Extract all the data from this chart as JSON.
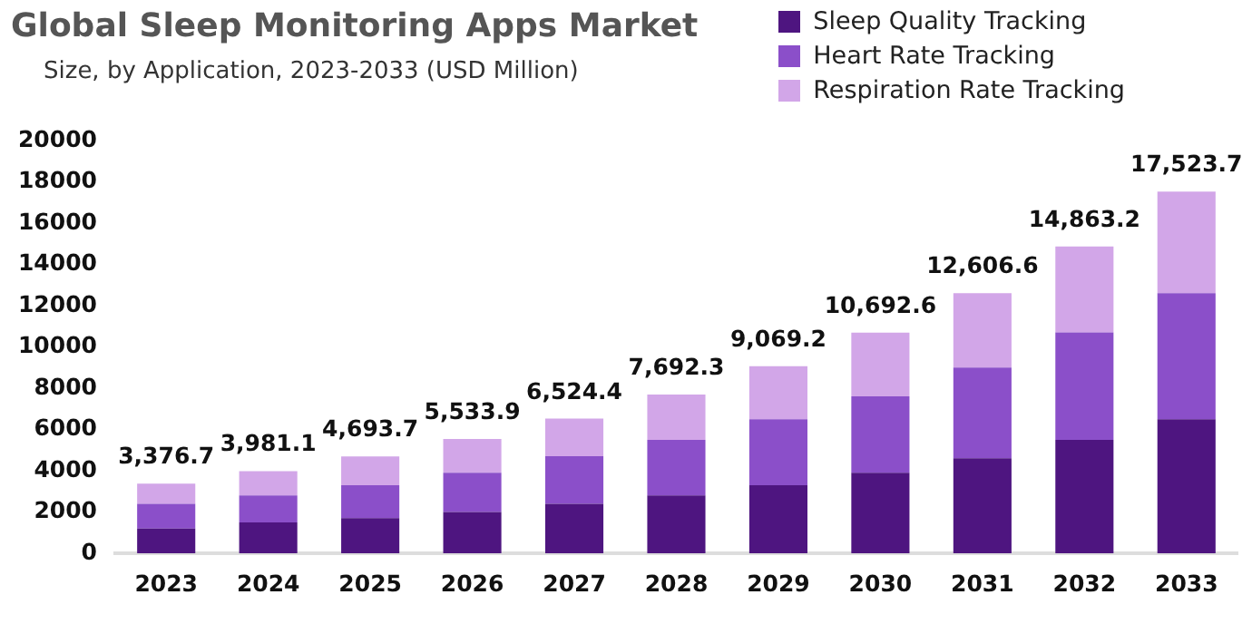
{
  "chart_data": {
    "type": "bar",
    "title": "Global Sleep Monitoring Apps Market",
    "subtitle": "Size, by Application, 2023-2033 (USD Million)",
    "categories": [
      "2023",
      "2024",
      "2025",
      "2026",
      "2027",
      "2028",
      "2029",
      "2030",
      "2031",
      "2032",
      "2033"
    ],
    "stacked": true,
    "series": [
      {
        "name": "Sleep Quality Tracking",
        "color": "#4e1580",
        "values": [
          1200,
          1500,
          1700,
          2000,
          2400,
          2800,
          3300,
          3900,
          4600,
          5500,
          6500
        ]
      },
      {
        "name": "Heart Rate Tracking",
        "color": "#8b4fc9",
        "values": [
          1200,
          1300,
          1600,
          1900,
          2300,
          2700,
          3200,
          3700,
          4400,
          5200,
          6100
        ]
      },
      {
        "name": "Respiration Rate Tracking",
        "color": "#d2a6e8",
        "values": [
          976.7,
          1181.1,
          1393.7,
          1633.9,
          1824.4,
          2192.3,
          2569.2,
          3092.6,
          3606.6,
          4163.2,
          4923.7
        ]
      }
    ],
    "totals": [
      "3,376.7",
      "3,981.1",
      "4,693.7",
      "5,533.9",
      "6,524.4",
      "7,692.3",
      "9,069.2",
      "10,692.6",
      "12,606.6",
      "14,863.2",
      "17,523.7"
    ],
    "ylim": [
      0,
      20000
    ],
    "yticks": [
      0,
      2000,
      4000,
      6000,
      8000,
      10000,
      12000,
      14000,
      16000,
      18000,
      20000
    ],
    "grid": false,
    "legend": "top right"
  }
}
